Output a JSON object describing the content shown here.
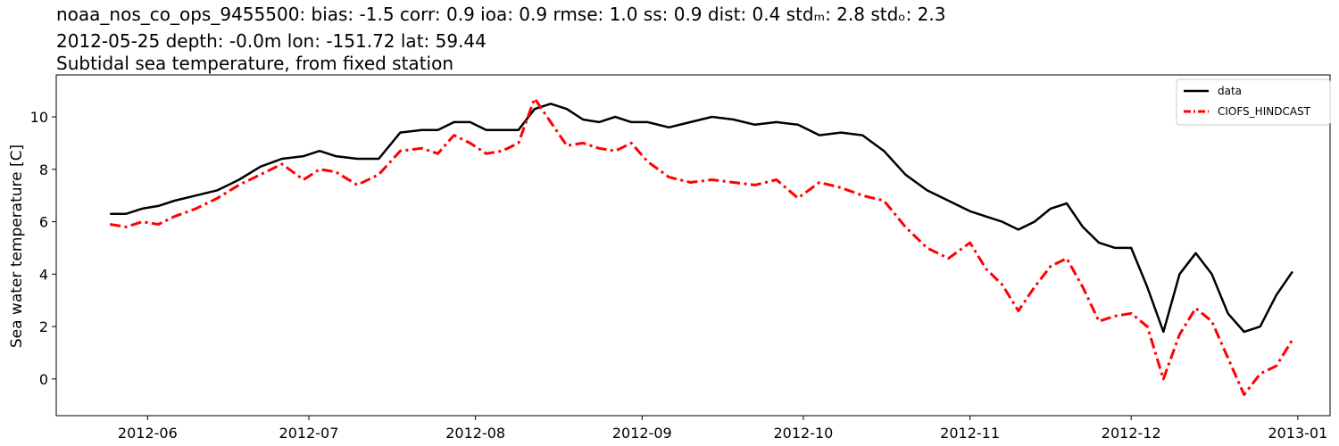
{
  "title": {
    "line1": "noaa_nos_co_ops_9455500: bias: -1.5  corr: 0.9  ioa: 0.9  rmse: 1.0  ss: 0.9  dist: 0.4  stdₘ: 2.8  stdₒ: 2.3",
    "line2": "2012-05-25 depth: -0.0m lon: -151.72 lat: 59.44",
    "line3": "Subtidal sea temperature, from fixed station"
  },
  "chart_data": {
    "type": "line",
    "xlabel": "",
    "ylabel": "Sea water temperature [C]",
    "xlim": [
      "2012-05-15",
      "2013-01-07"
    ],
    "ylim": [
      -1.4,
      11.6
    ],
    "x_ticks": [
      "2012-06-01",
      "2012-07-01",
      "2012-08-01",
      "2012-09-01",
      "2012-10-01",
      "2012-11-01",
      "2012-12-01",
      "2013-01-01"
    ],
    "x_tick_labels": [
      "2012-06",
      "2012-07",
      "2012-08",
      "2012-09",
      "2012-10",
      "2012-11",
      "2012-12",
      "2013-01"
    ],
    "y_ticks": [
      0,
      2,
      4,
      6,
      8,
      10
    ],
    "grid": false,
    "legend_position": "top-right",
    "series": [
      {
        "name": "data",
        "color": "#000000",
        "style": "solid",
        "x": [
          "2012-05-25",
          "2012-05-28",
          "2012-05-31",
          "2012-06-03",
          "2012-06-06",
          "2012-06-10",
          "2012-06-14",
          "2012-06-18",
          "2012-06-22",
          "2012-06-26",
          "2012-06-30",
          "2012-07-03",
          "2012-07-06",
          "2012-07-10",
          "2012-07-14",
          "2012-07-18",
          "2012-07-22",
          "2012-07-25",
          "2012-07-28",
          "2012-07-31",
          "2012-08-03",
          "2012-08-06",
          "2012-08-09",
          "2012-08-12",
          "2012-08-15",
          "2012-08-18",
          "2012-08-21",
          "2012-08-24",
          "2012-08-27",
          "2012-08-30",
          "2012-09-02",
          "2012-09-06",
          "2012-09-10",
          "2012-09-14",
          "2012-09-18",
          "2012-09-22",
          "2012-09-26",
          "2012-09-30",
          "2012-10-04",
          "2012-10-08",
          "2012-10-12",
          "2012-10-16",
          "2012-10-20",
          "2012-10-24",
          "2012-10-28",
          "2012-11-01",
          "2012-11-04",
          "2012-11-07",
          "2012-11-10",
          "2012-11-13",
          "2012-11-16",
          "2012-11-19",
          "2012-11-22",
          "2012-11-25",
          "2012-11-28",
          "2012-12-01",
          "2012-12-04",
          "2012-12-07",
          "2012-12-10",
          "2012-12-13",
          "2012-12-16",
          "2012-12-19",
          "2012-12-22",
          "2012-12-25",
          "2012-12-28",
          "2012-12-31"
        ],
        "values": [
          6.3,
          6.3,
          6.5,
          6.6,
          6.8,
          7.0,
          7.2,
          7.6,
          8.1,
          8.4,
          8.5,
          8.7,
          8.5,
          8.4,
          8.4,
          9.4,
          9.5,
          9.5,
          9.8,
          9.8,
          9.5,
          9.5,
          9.5,
          10.3,
          10.5,
          10.3,
          9.9,
          9.8,
          10.0,
          9.8,
          9.8,
          9.6,
          9.8,
          10.0,
          9.9,
          9.7,
          9.8,
          9.7,
          9.3,
          9.4,
          9.3,
          8.7,
          7.8,
          7.2,
          6.8,
          6.4,
          6.2,
          6.0,
          5.7,
          6.0,
          6.5,
          6.7,
          5.8,
          5.2,
          5.0,
          5.0,
          3.5,
          1.8,
          4.0,
          4.8,
          4.0,
          2.5,
          1.8,
          2.0,
          3.2,
          4.1
        ]
      },
      {
        "name": "CIOFS_HINDCAST",
        "color": "#ff0000",
        "style": "dashdot",
        "x": [
          "2012-05-25",
          "2012-05-28",
          "2012-05-31",
          "2012-06-03",
          "2012-06-06",
          "2012-06-10",
          "2012-06-14",
          "2012-06-18",
          "2012-06-22",
          "2012-06-26",
          "2012-06-30",
          "2012-07-03",
          "2012-07-06",
          "2012-07-10",
          "2012-07-14",
          "2012-07-18",
          "2012-07-22",
          "2012-07-25",
          "2012-07-28",
          "2012-07-31",
          "2012-08-03",
          "2012-08-06",
          "2012-08-09",
          "2012-08-12",
          "2012-08-15",
          "2012-08-18",
          "2012-08-21",
          "2012-08-24",
          "2012-08-27",
          "2012-08-30",
          "2012-09-02",
          "2012-09-06",
          "2012-09-10",
          "2012-09-14",
          "2012-09-18",
          "2012-09-22",
          "2012-09-26",
          "2012-09-30",
          "2012-10-04",
          "2012-10-08",
          "2012-10-12",
          "2012-10-16",
          "2012-10-20",
          "2012-10-24",
          "2012-10-28",
          "2012-11-01",
          "2012-11-04",
          "2012-11-07",
          "2012-11-10",
          "2012-11-13",
          "2012-11-16",
          "2012-11-19",
          "2012-11-22",
          "2012-11-25",
          "2012-11-28",
          "2012-12-01",
          "2012-12-04",
          "2012-12-07",
          "2012-12-10",
          "2012-12-13",
          "2012-12-16",
          "2012-12-19",
          "2012-12-22",
          "2012-12-25",
          "2012-12-28",
          "2012-12-31"
        ],
        "values": [
          5.9,
          5.8,
          6.0,
          5.9,
          6.2,
          6.5,
          6.9,
          7.4,
          7.8,
          8.2,
          7.6,
          8.0,
          7.9,
          7.4,
          7.8,
          8.7,
          8.8,
          8.6,
          9.3,
          9.0,
          8.6,
          8.7,
          9.0,
          10.7,
          9.8,
          8.9,
          9.0,
          8.8,
          8.7,
          9.0,
          8.3,
          7.7,
          7.5,
          7.6,
          7.5,
          7.4,
          7.6,
          6.9,
          7.5,
          7.3,
          7.0,
          6.8,
          5.8,
          5.0,
          4.6,
          5.2,
          4.2,
          3.6,
          2.6,
          3.5,
          4.3,
          4.6,
          3.5,
          2.2,
          2.4,
          2.5,
          2.0,
          0.0,
          1.7,
          2.7,
          2.2,
          0.8,
          -0.6,
          0.2,
          0.5,
          1.5
        ]
      }
    ]
  }
}
